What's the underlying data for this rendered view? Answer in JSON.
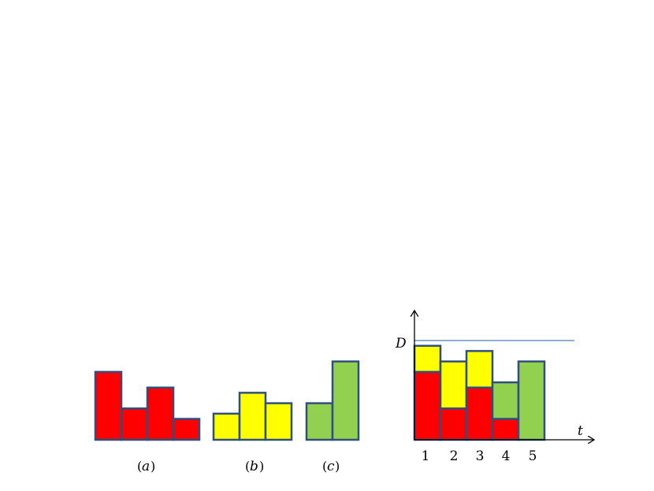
{
  "colors": {
    "red": "#ff0000",
    "yellow": "#ffff00",
    "green": "#92d050",
    "border": "#2f4f7f",
    "d_line": "#4f81bd"
  },
  "panels": [
    {
      "caption": "(a)",
      "color": "red",
      "values": [
        6.5,
        3.0,
        5.0,
        2.0
      ]
    },
    {
      "caption": "(b)",
      "color": "yellow",
      "values": [
        2.5,
        4.5,
        3.5
      ]
    },
    {
      "caption": "(c)",
      "color": "green",
      "values": [
        3.5,
        7.5
      ]
    }
  ],
  "schedule": {
    "y_axis_label": "D",
    "x_axis_label": "t",
    "x_ticks": [
      "1",
      "2",
      "3",
      "4",
      "5"
    ],
    "d_level": 9.5,
    "stacks": [
      [
        {
          "color": "red",
          "value": 6.5
        },
        {
          "color": "yellow",
          "value": 2.5
        }
      ],
      [
        {
          "color": "red",
          "value": 3.0
        },
        {
          "color": "yellow",
          "value": 4.5
        }
      ],
      [
        {
          "color": "red",
          "value": 5.0
        },
        {
          "color": "yellow",
          "value": 3.5
        }
      ],
      [
        {
          "color": "red",
          "value": 2.0
        },
        {
          "color": "green",
          "value": 3.5
        }
      ],
      [
        {
          "color": "green",
          "value": 7.5
        }
      ]
    ]
  }
}
